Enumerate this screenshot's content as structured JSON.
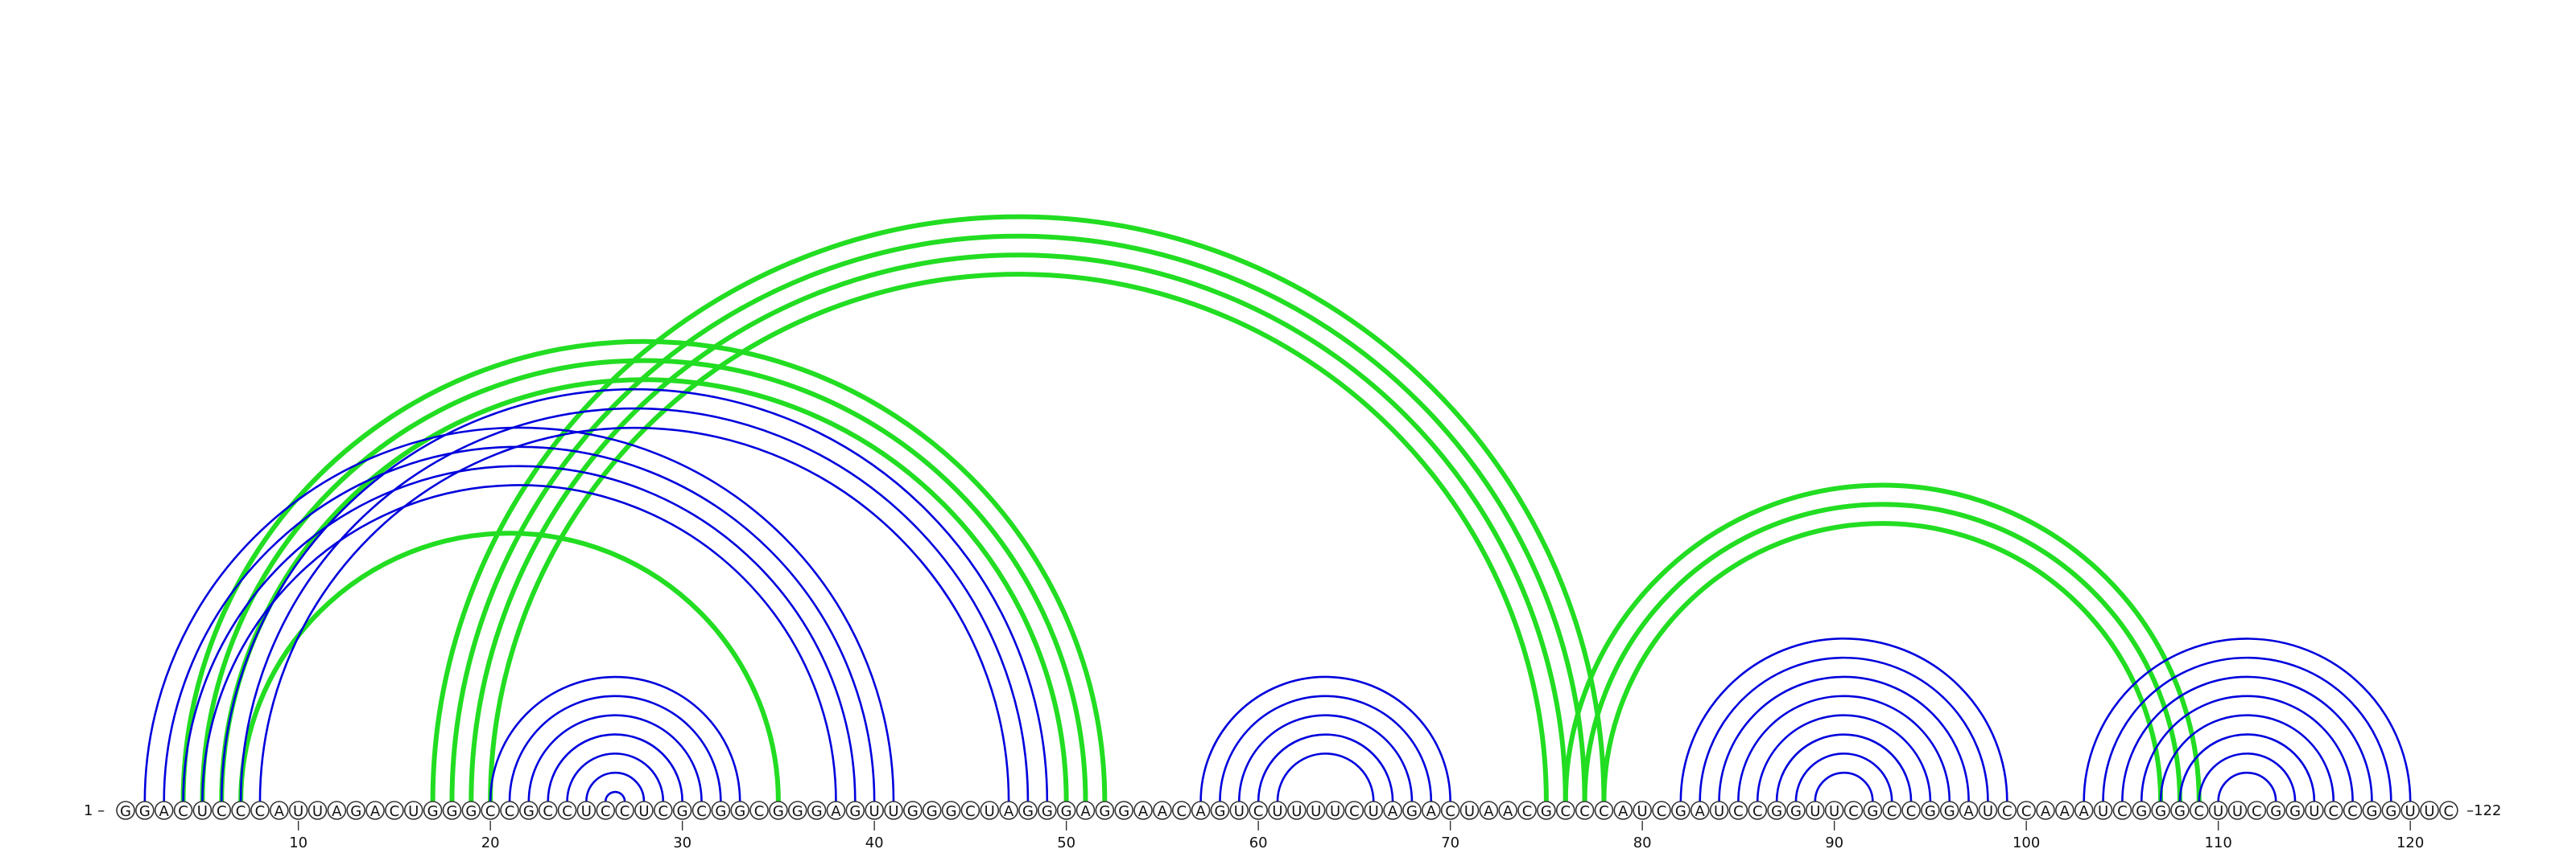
{
  "sequence": "GGACUCCCAUUAGACUGGGCCGCCUCCUCGCGGCGGGAGUUGGGCUAGGGAGGAACAGUCUUUUCUAGACUAACGCCCAUCGAUCCGGUUCGCCGGAUCCAAAUCGGGCUUCGGUCCGGUUC",
  "start_label": "1 –",
  "end_label": "–122",
  "colors": {
    "blue": "#0000dd",
    "green": "#22dd22"
  },
  "ticks": [
    10,
    20,
    30,
    40,
    50,
    60,
    70,
    80,
    90,
    100,
    110,
    120
  ],
  "pairs_blue": [
    [
      2,
      41
    ],
    [
      3,
      40
    ],
    [
      4,
      39
    ],
    [
      5,
      38
    ],
    [
      6,
      49
    ],
    [
      7,
      48
    ],
    [
      8,
      47
    ],
    [
      20,
      33
    ],
    [
      21,
      32
    ],
    [
      22,
      31
    ],
    [
      23,
      30
    ],
    [
      24,
      29
    ],
    [
      25,
      28
    ],
    [
      26,
      27
    ],
    [
      57,
      70
    ],
    [
      58,
      69
    ],
    [
      59,
      68
    ],
    [
      60,
      67
    ],
    [
      61,
      66
    ],
    [
      82,
      99
    ],
    [
      83,
      98
    ],
    [
      84,
      97
    ],
    [
      85,
      96
    ],
    [
      86,
      95
    ],
    [
      87,
      94
    ],
    [
      88,
      93
    ],
    [
      89,
      92
    ],
    [
      103,
      120
    ],
    [
      104,
      119
    ],
    [
      105,
      118
    ],
    [
      106,
      117
    ],
    [
      107,
      116
    ],
    [
      108,
      115
    ],
    [
      109,
      114
    ],
    [
      110,
      113
    ]
  ],
  "pairs_green": [
    [
      4,
      52
    ],
    [
      5,
      51
    ],
    [
      6,
      50
    ],
    [
      7,
      35
    ],
    [
      17,
      78
    ],
    [
      18,
      77
    ],
    [
      19,
      76
    ],
    [
      20,
      75
    ],
    [
      76,
      109
    ],
    [
      77,
      108
    ],
    [
      78,
      107
    ]
  ]
}
